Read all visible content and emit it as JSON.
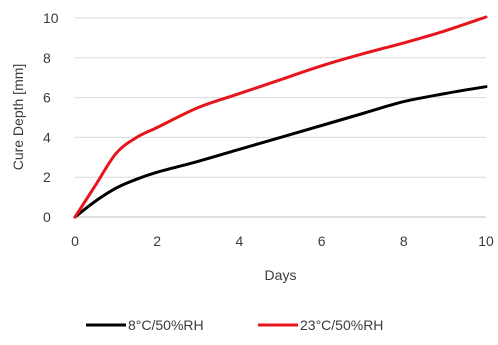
{
  "chart_data": {
    "type": "line",
    "title": "",
    "xlabel": "Days",
    "ylabel": "Cure Depth [mm]",
    "xlim": [
      0,
      10
    ],
    "ylim": [
      0,
      10
    ],
    "xticks": [
      "0",
      "2",
      "4",
      "6",
      "8",
      "10"
    ],
    "yticks": [
      "0",
      "2",
      "4",
      "6",
      "8",
      "10"
    ],
    "grid": "horizontal",
    "legend_position": "bottom",
    "series": [
      {
        "name": "8°C/50%RH",
        "color": "#000000",
        "x": [
          0,
          0.5,
          1,
          1.5,
          2,
          3,
          4,
          5,
          6,
          7,
          8,
          9,
          10
        ],
        "y": [
          0,
          0.8,
          1.45,
          1.9,
          2.25,
          2.8,
          3.4,
          4.0,
          4.6,
          5.2,
          5.8,
          6.2,
          6.55
        ]
      },
      {
        "name": "23°C/50%RH",
        "color": "#e8141c",
        "x": [
          0,
          0.5,
          1,
          1.5,
          2,
          3,
          4,
          5,
          6,
          7,
          8,
          9,
          10
        ],
        "y": [
          0,
          1.6,
          3.2,
          4.0,
          4.5,
          5.5,
          6.2,
          6.9,
          7.6,
          8.2,
          8.75,
          9.35,
          10.05
        ]
      }
    ]
  }
}
